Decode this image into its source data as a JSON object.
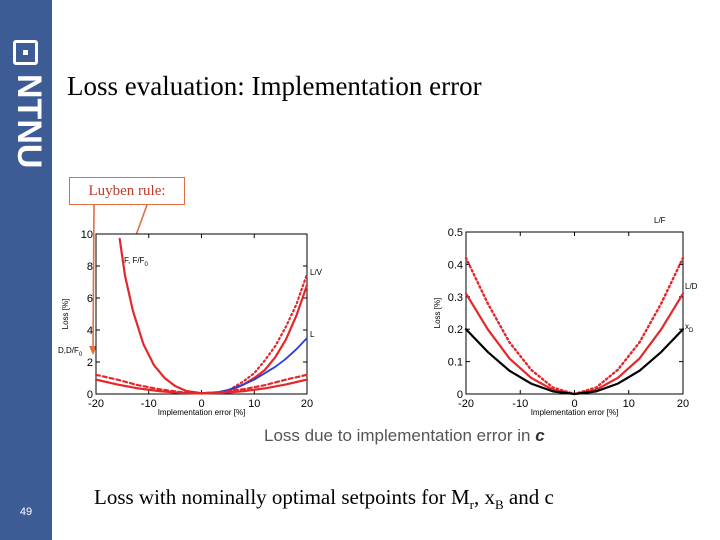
{
  "slide": {
    "title": "Loss evaluation: Implementation error",
    "page_number": "49",
    "logo_text": "NTNU",
    "annotation": "Luyben rule:",
    "caption_prefix": "Loss due to implementation error in",
    "caption_var": "c",
    "bottom": {
      "part1": "Loss with nominally optimal setpoints for M",
      "sub1": "r",
      "part2": ", x",
      "sub2": "B",
      "part3": " and c"
    }
  },
  "colors": {
    "sidebar": "#3d5c96",
    "curve_red": "#e3282b",
    "curve_blue": "#2b3ce0",
    "curve_black": "#000000",
    "annotation": "#c0392b"
  },
  "chart_data": [
    {
      "type": "line",
      "xlabel": "Implementation error [%]",
      "ylabel": "Loss [%]",
      "xlim": [
        -20,
        20
      ],
      "ylim": [
        0,
        10
      ],
      "xticks": [
        "-20",
        "-10",
        "0",
        "10",
        "20"
      ],
      "yticks": [
        "0",
        "2",
        "4",
        "6",
        "8",
        "10"
      ],
      "series": [
        {
          "name": "F, F/F0",
          "label": "F, F/F",
          "label_sub": "0",
          "color": "#e3282b",
          "style": "solid",
          "width": 2.2,
          "x": [
            -15.5,
            -14.5,
            -13,
            -11,
            -9,
            -7,
            -5,
            -3,
            0,
            3,
            6,
            8,
            10,
            12,
            14,
            16,
            18,
            20
          ],
          "y": [
            9.7,
            7.4,
            5.2,
            3.1,
            1.8,
            1.0,
            0.5,
            0.2,
            0.05,
            0.1,
            0.3,
            0.6,
            1.0,
            1.5,
            2.3,
            3.4,
            4.9,
            6.8
          ]
        },
        {
          "name": "L/V",
          "label": "L/V",
          "color": "#e3282b",
          "style": "dotted",
          "width": 2.2,
          "x": [
            6,
            8,
            10,
            12,
            14,
            16,
            18,
            20
          ],
          "y": [
            0.4,
            0.8,
            1.3,
            2.1,
            3.0,
            4.2,
            5.6,
            7.5
          ]
        },
        {
          "name": "L",
          "label": "L",
          "color": "#2b3ce0",
          "style": "solid",
          "width": 1.8,
          "x": [
            3,
            5,
            8,
            10,
            12,
            14,
            16,
            18,
            20
          ],
          "y": [
            0.1,
            0.25,
            0.6,
            0.9,
            1.3,
            1.7,
            2.2,
            2.8,
            3.5
          ]
        },
        {
          "name": "D, D/F0",
          "label": "D,D/F",
          "label_sub": "0",
          "color": "#e3282b",
          "style": "dashed",
          "width": 2.2,
          "x": [
            -20,
            -16,
            -12,
            -8,
            -4,
            0,
            4,
            8,
            12,
            16,
            20
          ],
          "y": [
            1.2,
            0.9,
            0.55,
            0.3,
            0.12,
            0.05,
            0.12,
            0.3,
            0.55,
            0.9,
            1.2
          ]
        },
        {
          "name": "lower",
          "label": "",
          "color": "#e3282b",
          "style": "solid",
          "width": 2.2,
          "x": [
            -20,
            -16,
            -12,
            -8,
            -4,
            0,
            4,
            8,
            12,
            16,
            20
          ],
          "y": [
            0.9,
            0.6,
            0.35,
            0.18,
            0.07,
            0.03,
            0.07,
            0.18,
            0.35,
            0.6,
            0.9
          ]
        }
      ]
    },
    {
      "type": "line",
      "xlabel": "Implementation error [%]",
      "ylabel": "Loss [%]",
      "xlim": [
        -20,
        20
      ],
      "ylim": [
        0,
        0.5
      ],
      "xticks": [
        "-20",
        "-10",
        "0",
        "10",
        "20"
      ],
      "yticks": [
        "0",
        "0.1",
        "0.2",
        "0.3",
        "0.4",
        "0.5"
      ],
      "series": [
        {
          "name": "L/F",
          "label": "L/F",
          "color": "#e3282b",
          "style": "dotted",
          "width": 2.4,
          "x": [
            -20,
            -16,
            -12,
            -8,
            -4,
            0,
            4,
            8,
            12,
            16,
            20
          ],
          "y": [
            0.42,
            0.28,
            0.16,
            0.075,
            0.02,
            0.0,
            0.02,
            0.075,
            0.16,
            0.28,
            0.42
          ]
        },
        {
          "name": "L/D",
          "label": "L/D",
          "color": "#e3282b",
          "style": "solid",
          "width": 2.2,
          "x": [
            -20,
            -16,
            -12,
            -8,
            -4,
            0,
            4,
            8,
            12,
            16,
            20
          ],
          "y": [
            0.31,
            0.2,
            0.11,
            0.05,
            0.013,
            0.0,
            0.013,
            0.05,
            0.11,
            0.2,
            0.31
          ]
        },
        {
          "name": "xD",
          "label": "x",
          "label_sub": "D",
          "color": "#000000",
          "style": "solid",
          "width": 2.2,
          "x": [
            -20,
            -16,
            -12,
            -8,
            -4,
            0,
            4,
            8,
            12,
            16,
            20
          ],
          "y": [
            0.2,
            0.13,
            0.072,
            0.032,
            0.008,
            0.0,
            0.008,
            0.032,
            0.072,
            0.13,
            0.2
          ]
        }
      ]
    }
  ]
}
